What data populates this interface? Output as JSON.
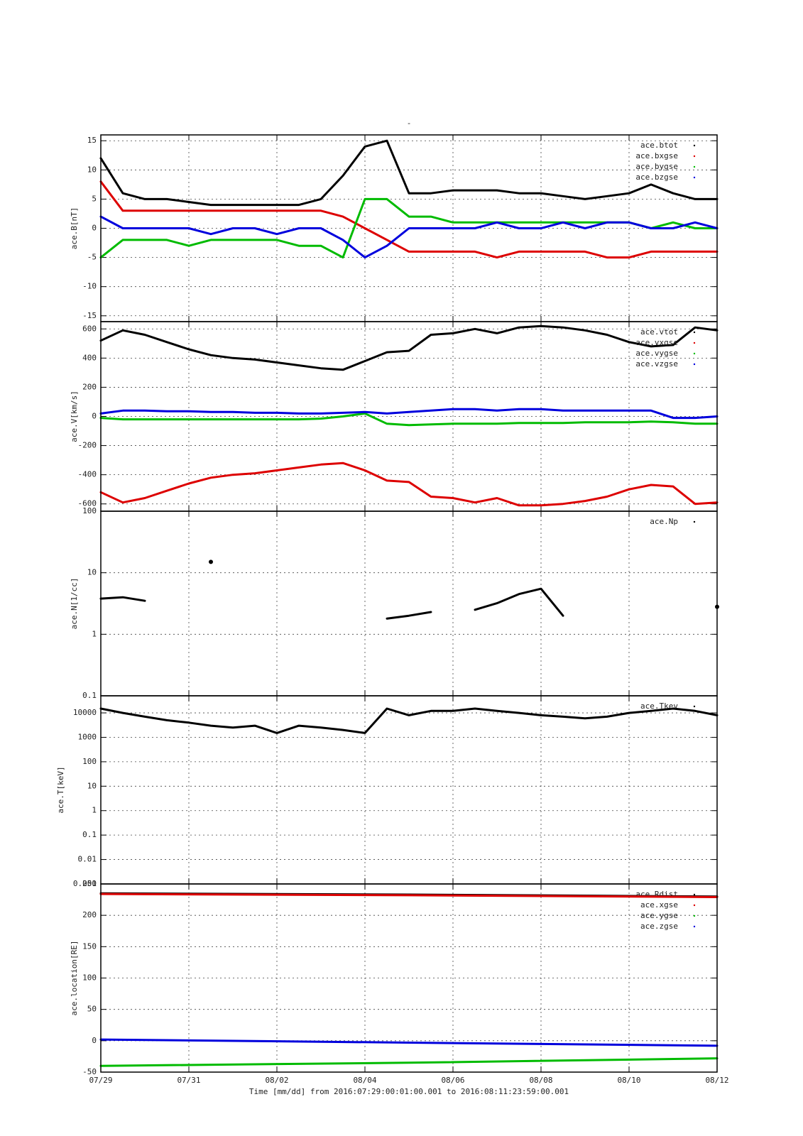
{
  "title": "-",
  "xlabel": "Time [mm/dd]  from 2016:07:29:00:01:00.001  to  2016:08:11:23:59:00.001",
  "chart_data": [
    {
      "type": "line",
      "ylabel": "ace.B[nT]",
      "ylim": [
        -16,
        16
      ],
      "yticks": [
        -15,
        -10,
        -5,
        0,
        5,
        10,
        15
      ],
      "xlim": [
        0,
        14
      ],
      "xticks": [
        0,
        2,
        4,
        6,
        8,
        10,
        12,
        14
      ],
      "grid": true,
      "legend": "upper right",
      "x": [
        0,
        0.5,
        1,
        1.5,
        2,
        2.5,
        3,
        3.5,
        4,
        4.5,
        5,
        5.5,
        6,
        6.5,
        7,
        7.5,
        8,
        8.5,
        9,
        9.5,
        10,
        10.5,
        11,
        11.5,
        12,
        12.5,
        13,
        13.5,
        14
      ],
      "series": [
        {
          "name": "ace.btot",
          "color": "#000000",
          "values": [
            12,
            6,
            5,
            5,
            4.5,
            4,
            4,
            4,
            4,
            4,
            5,
            9,
            14,
            15,
            6,
            6,
            6.5,
            6.5,
            6.5,
            6,
            6,
            5.5,
            5,
            5.5,
            6,
            7.5,
            6,
            5,
            5
          ]
        },
        {
          "name": "ace.bxgse",
          "color": "#dd0000",
          "values": [
            8,
            3,
            3,
            3,
            3,
            3,
            3,
            3,
            3,
            3,
            3,
            2,
            0,
            -2,
            -4,
            -4,
            -4,
            -4,
            -5,
            -4,
            -4,
            -4,
            -4,
            -5,
            -5,
            -4,
            -4,
            -4,
            -4
          ]
        },
        {
          "name": "ace.bygse",
          "color": "#00bb00",
          "values": [
            -5,
            -2,
            -2,
            -2,
            -3,
            -2,
            -2,
            -2,
            -2,
            -3,
            -3,
            -5,
            5,
            5,
            2,
            2,
            1,
            1,
            1,
            1,
            1,
            1,
            1,
            1,
            1,
            0,
            1,
            0,
            0
          ]
        },
        {
          "name": "ace.bzgse",
          "color": "#0000dd",
          "values": [
            2,
            0,
            0,
            0,
            0,
            -1,
            0,
            0,
            -1,
            0,
            0,
            -2,
            -5,
            -3,
            0,
            0,
            0,
            0,
            1,
            0,
            0,
            1,
            0,
            1,
            1,
            0,
            0,
            1,
            0
          ]
        }
      ]
    },
    {
      "type": "line",
      "ylabel": "ace.V[km/s]",
      "ylim": [
        -650,
        650
      ],
      "yticks": [
        -600,
        -400,
        -200,
        0,
        200,
        400,
        600
      ],
      "xlim": [
        0,
        14
      ],
      "xticks": [
        0,
        2,
        4,
        6,
        8,
        10,
        12,
        14
      ],
      "grid": true,
      "legend": "upper right",
      "x": [
        0,
        0.5,
        1,
        1.5,
        2,
        2.5,
        3,
        3.5,
        4,
        4.5,
        5,
        5.5,
        6,
        6.5,
        7,
        7.5,
        8,
        8.5,
        9,
        9.5,
        10,
        10.5,
        11,
        11.5,
        12,
        12.5,
        13,
        13.5,
        14
      ],
      "series": [
        {
          "name": "ace.vtot",
          "color": "#000000",
          "values": [
            520,
            590,
            560,
            510,
            460,
            420,
            400,
            390,
            370,
            350,
            330,
            320,
            380,
            440,
            450,
            560,
            570,
            600,
            570,
            610,
            620,
            610,
            590,
            560,
            510,
            480,
            490,
            610,
            590
          ]
        },
        {
          "name": "ace.vxgse",
          "color": "#dd0000",
          "values": [
            -520,
            -590,
            -560,
            -510,
            -460,
            -420,
            -400,
            -390,
            -370,
            -350,
            -330,
            -320,
            -370,
            -440,
            -450,
            -550,
            -560,
            -590,
            -560,
            -610,
            -610,
            -600,
            -580,
            -550,
            -500,
            -470,
            -480,
            -600,
            -590
          ]
        },
        {
          "name": "ace.vygse",
          "color": "#00bb00",
          "values": [
            -10,
            -20,
            -20,
            -20,
            -20,
            -20,
            -20,
            -20,
            -20,
            -20,
            -15,
            0,
            20,
            -50,
            -60,
            -55,
            -50,
            -50,
            -50,
            -45,
            -45,
            -45,
            -40,
            -40,
            -40,
            -35,
            -40,
            -50,
            -50
          ]
        },
        {
          "name": "ace.vzgse",
          "color": "#0000dd",
          "values": [
            20,
            40,
            40,
            35,
            35,
            30,
            30,
            25,
            25,
            20,
            20,
            25,
            30,
            20,
            30,
            40,
            50,
            50,
            40,
            50,
            50,
            40,
            40,
            40,
            40,
            40,
            -10,
            -10,
            0
          ]
        }
      ]
    },
    {
      "type": "line",
      "ylabel": "ace.N[1/cc]",
      "log": true,
      "ylim": [
        0.1,
        100
      ],
      "yticks": [
        0.1,
        1,
        10,
        100
      ],
      "xlim": [
        0,
        14
      ],
      "xticks": [
        0,
        2,
        4,
        6,
        8,
        10,
        12,
        14
      ],
      "grid": true,
      "legend": "upper right",
      "x": [
        0,
        0.5,
        1,
        1.5,
        2,
        2.5,
        3,
        3.5,
        4,
        4.5,
        5,
        5.5,
        6,
        6.5,
        7,
        7.5,
        8,
        8.5,
        9,
        9.5,
        10,
        10.5,
        11,
        11.5,
        12,
        12.5,
        13,
        13.5,
        14
      ],
      "series": [
        {
          "name": "ace.Np",
          "color": "#000000",
          "values": [
            3.8,
            4,
            3.5,
            null,
            null,
            15,
            null,
            null,
            null,
            null,
            null,
            null,
            null,
            1.8,
            2,
            2.3,
            null,
            2.5,
            3.2,
            4.5,
            5.5,
            2,
            null,
            null,
            null,
            null,
            null,
            null,
            2.8
          ]
        }
      ]
    },
    {
      "type": "line",
      "ylabel": "ace.T[keV]",
      "log": true,
      "ylim": [
        0.001,
        50000
      ],
      "yticks": [
        0.001,
        0.01,
        0.1,
        1,
        10,
        100,
        1000,
        10000
      ],
      "xlim": [
        0,
        14
      ],
      "xticks": [
        0,
        2,
        4,
        6,
        8,
        10,
        12,
        14
      ],
      "grid": true,
      "legend": "upper right",
      "x": [
        0,
        0.5,
        1,
        1.5,
        2,
        2.5,
        3,
        3.5,
        4,
        4.5,
        5,
        5.5,
        6,
        6.5,
        7,
        7.5,
        8,
        8.5,
        9,
        9.5,
        10,
        10.5,
        11,
        11.5,
        12,
        12.5,
        13,
        13.5,
        14
      ],
      "series": [
        {
          "name": "ace.Tkev",
          "color": "#000000",
          "values": [
            15000,
            10000,
            7000,
            5000,
            4000,
            3000,
            2500,
            3000,
            1500,
            3000,
            2500,
            2000,
            1500,
            15000,
            8000,
            12000,
            12000,
            15000,
            12000,
            10000,
            8000,
            7000,
            6000,
            7000,
            10000,
            12000,
            15000,
            12000,
            8000
          ]
        }
      ]
    },
    {
      "type": "line",
      "ylabel": "ace.location[RE]",
      "ylim": [
        -50,
        250
      ],
      "yticks": [
        -50,
        0,
        50,
        100,
        150,
        200,
        250
      ],
      "xlim": [
        0,
        14
      ],
      "grid": true,
      "legend": "upper right",
      "xticks": [
        {
          "value": 0,
          "label": "07/29"
        },
        {
          "value": 2,
          "label": "07/31"
        },
        {
          "value": 4,
          "label": "08/02"
        },
        {
          "value": 6,
          "label": "08/04"
        },
        {
          "value": 8,
          "label": "08/06"
        },
        {
          "value": 10,
          "label": "08/08"
        },
        {
          "value": 12,
          "label": "08/10"
        },
        {
          "value": 14,
          "label": "08/12"
        }
      ],
      "x": [
        0,
        7,
        14
      ],
      "series": [
        {
          "name": "ace.Rdist",
          "color": "#000000",
          "values": [
            235,
            233,
            230
          ]
        },
        {
          "name": "ace.xgse",
          "color": "#dd0000",
          "values": [
            234,
            232,
            229
          ]
        },
        {
          "name": "ace.ygse",
          "color": "#00bb00",
          "values": [
            -40,
            -35,
            -28
          ]
        },
        {
          "name": "ace.zgse",
          "color": "#0000dd",
          "values": [
            2,
            -3,
            -8
          ]
        }
      ]
    }
  ]
}
